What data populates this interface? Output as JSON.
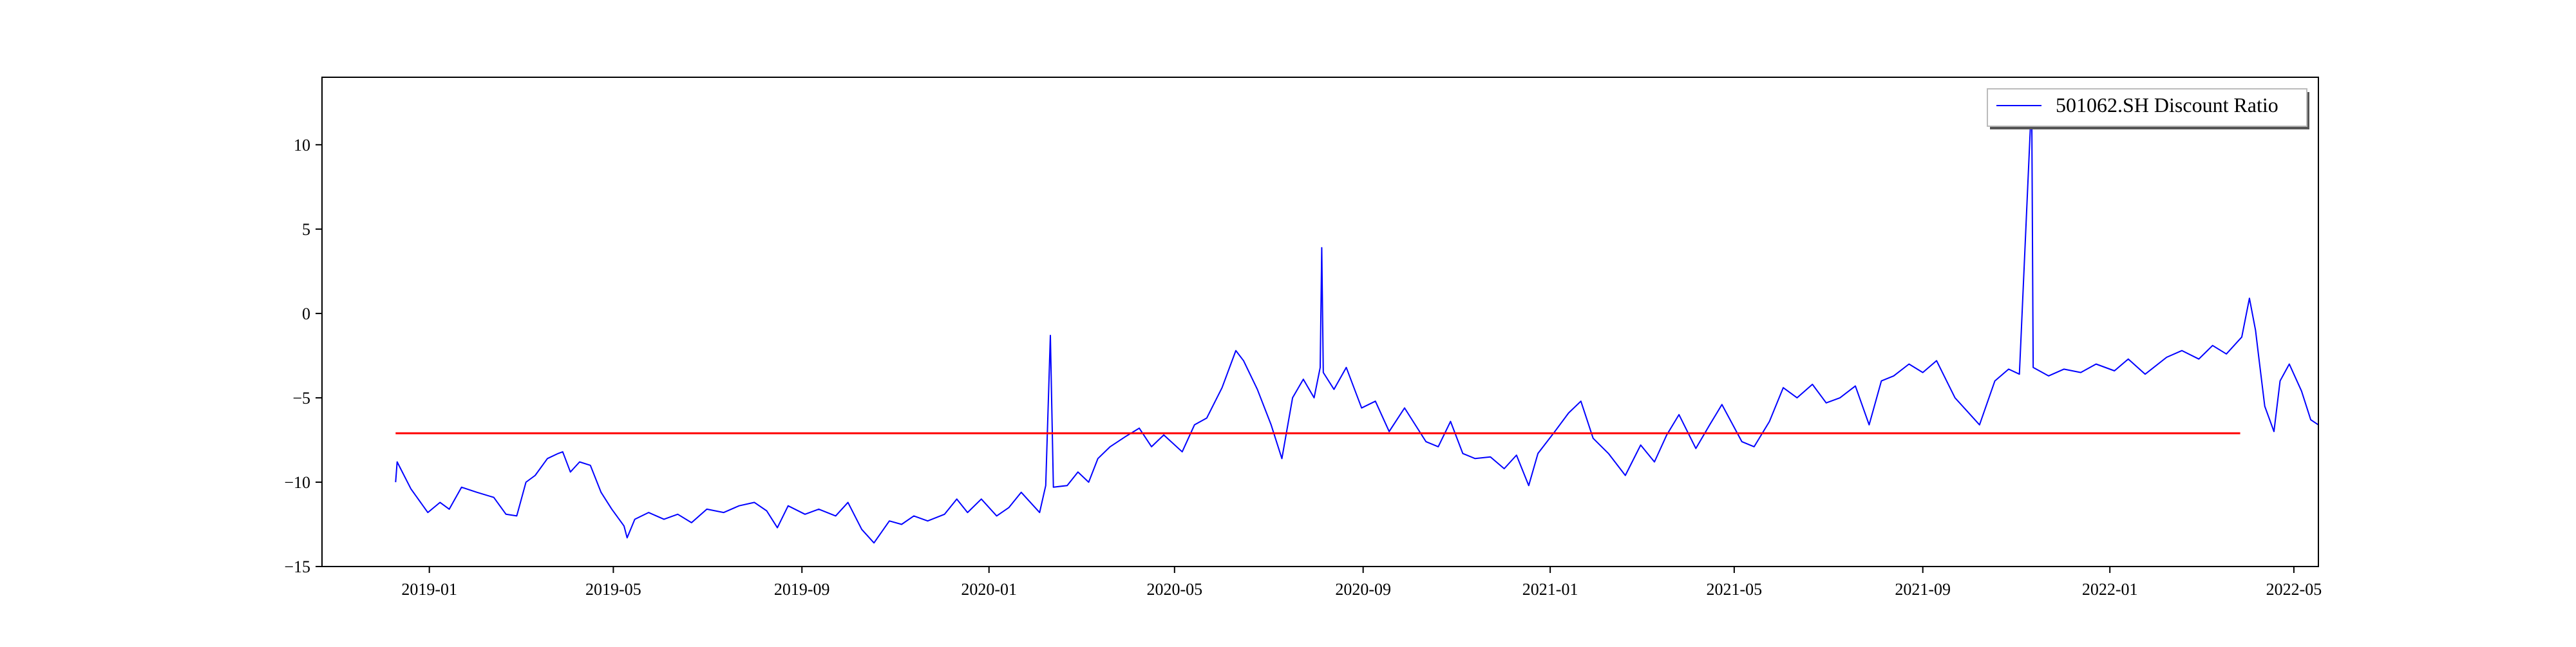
{
  "chart_data": {
    "type": "line",
    "title": "",
    "xlabel": "",
    "ylabel": "",
    "ylim": [
      -15,
      14
    ],
    "xlim": [
      "2018-10-23",
      "2022-05-17"
    ],
    "grid": false,
    "legend_position": "top-right",
    "x_ticks": [
      "2019-01",
      "2019-05",
      "2019-09",
      "2020-01",
      "2020-05",
      "2020-09",
      "2021-01",
      "2021-05",
      "2021-09",
      "2022-01",
      "2022-05"
    ],
    "y_ticks": [
      10,
      5,
      0,
      -5,
      -10,
      -15
    ],
    "y_tick_labels": [
      "10",
      "5",
      "0",
      "−5",
      "−10",
      "−15"
    ],
    "series": [
      {
        "name": "501062.SH Discount Ratio",
        "color": "#0000ff",
        "points": [
          [
            "2018-12-10",
            -10.0
          ],
          [
            "2018-12-11",
            -8.8
          ],
          [
            "2018-12-20",
            -10.4
          ],
          [
            "2018-12-31",
            -11.8
          ],
          [
            "2019-01-08",
            -11.2
          ],
          [
            "2019-01-14",
            -11.6
          ],
          [
            "2019-01-22",
            -10.3
          ],
          [
            "2019-02-01",
            -10.6
          ],
          [
            "2019-02-12",
            -10.9
          ],
          [
            "2019-02-20",
            -11.9
          ],
          [
            "2019-02-27",
            -12.0
          ],
          [
            "2019-03-05",
            -10.0
          ],
          [
            "2019-03-11",
            -9.6
          ],
          [
            "2019-03-19",
            -8.6
          ],
          [
            "2019-03-26",
            -8.3
          ],
          [
            "2019-03-29",
            -8.2
          ],
          [
            "2019-04-03",
            -9.4
          ],
          [
            "2019-04-09",
            -8.8
          ],
          [
            "2019-04-16",
            -9.0
          ],
          [
            "2019-04-23",
            -10.6
          ],
          [
            "2019-04-30",
            -11.6
          ],
          [
            "2019-05-08",
            -12.6
          ],
          [
            "2019-05-10",
            -13.3
          ],
          [
            "2019-05-15",
            -12.2
          ],
          [
            "2019-05-24",
            -11.8
          ],
          [
            "2019-06-03",
            -12.2
          ],
          [
            "2019-06-12",
            -11.9
          ],
          [
            "2019-06-21",
            -12.4
          ],
          [
            "2019-07-01",
            -11.6
          ],
          [
            "2019-07-12",
            -11.8
          ],
          [
            "2019-07-22",
            -11.4
          ],
          [
            "2019-08-01",
            -11.2
          ],
          [
            "2019-08-09",
            -11.7
          ],
          [
            "2019-08-16",
            -12.7
          ],
          [
            "2019-08-23",
            -11.4
          ],
          [
            "2019-09-03",
            -11.9
          ],
          [
            "2019-09-12",
            -11.6
          ],
          [
            "2019-09-23",
            -12.0
          ],
          [
            "2019-10-01",
            -11.2
          ],
          [
            "2019-10-10",
            -12.8
          ],
          [
            "2019-10-18",
            -13.6
          ],
          [
            "2019-10-28",
            -12.3
          ],
          [
            "2019-11-05",
            -12.5
          ],
          [
            "2019-11-13",
            -12.0
          ],
          [
            "2019-11-22",
            -12.3
          ],
          [
            "2019-12-03",
            -11.9
          ],
          [
            "2019-12-11",
            -11.0
          ],
          [
            "2019-12-18",
            -11.8
          ],
          [
            "2019-12-27",
            -11.0
          ],
          [
            "2020-01-06",
            -12.0
          ],
          [
            "2020-01-14",
            -11.5
          ],
          [
            "2020-01-22",
            -10.6
          ],
          [
            "2020-02-03",
            -11.8
          ],
          [
            "2020-02-07",
            -10.2
          ],
          [
            "2020-02-10",
            -1.3
          ],
          [
            "2020-02-12",
            -10.3
          ],
          [
            "2020-02-21",
            -10.2
          ],
          [
            "2020-02-28",
            -9.4
          ],
          [
            "2020-03-06",
            -10.0
          ],
          [
            "2020-03-12",
            -8.6
          ],
          [
            "2020-03-20",
            -7.9
          ],
          [
            "2020-03-30",
            -7.3
          ],
          [
            "2020-04-08",
            -6.8
          ],
          [
            "2020-04-16",
            -7.9
          ],
          [
            "2020-04-24",
            -7.2
          ],
          [
            "2020-05-06",
            -8.2
          ],
          [
            "2020-05-14",
            -6.6
          ],
          [
            "2020-05-22",
            -6.2
          ],
          [
            "2020-06-01",
            -4.4
          ],
          [
            "2020-06-10",
            -2.2
          ],
          [
            "2020-06-15",
            -2.8
          ],
          [
            "2020-06-24",
            -4.5
          ],
          [
            "2020-07-03",
            -6.6
          ],
          [
            "2020-07-10",
            -8.6
          ],
          [
            "2020-07-17",
            -5.0
          ],
          [
            "2020-07-24",
            -3.9
          ],
          [
            "2020-07-31",
            -5.0
          ],
          [
            "2020-08-04",
            -3.2
          ],
          [
            "2020-08-05",
            3.9
          ],
          [
            "2020-08-06",
            -3.5
          ],
          [
            "2020-08-13",
            -4.5
          ],
          [
            "2020-08-21",
            -3.2
          ],
          [
            "2020-08-31",
            -5.6
          ],
          [
            "2020-09-09",
            -5.2
          ],
          [
            "2020-09-18",
            -7.0
          ],
          [
            "2020-09-28",
            -5.6
          ],
          [
            "2020-10-12",
            -7.6
          ],
          [
            "2020-10-20",
            -7.9
          ],
          [
            "2020-10-28",
            -6.4
          ],
          [
            "2020-11-05",
            -8.3
          ],
          [
            "2020-11-13",
            -8.6
          ],
          [
            "2020-11-23",
            -8.5
          ],
          [
            "2020-12-02",
            -9.2
          ],
          [
            "2020-12-10",
            -8.4
          ],
          [
            "2020-12-18",
            -10.2
          ],
          [
            "2020-12-24",
            -8.3
          ],
          [
            "2021-01-04",
            -7.0
          ],
          [
            "2021-01-13",
            -5.9
          ],
          [
            "2021-01-21",
            -5.2
          ],
          [
            "2021-01-29",
            -7.4
          ],
          [
            "2021-02-08",
            -8.3
          ],
          [
            "2021-02-19",
            -9.6
          ],
          [
            "2021-03-01",
            -7.8
          ],
          [
            "2021-03-10",
            -8.8
          ],
          [
            "2021-03-18",
            -7.2
          ],
          [
            "2021-03-26",
            -6.0
          ],
          [
            "2021-04-06",
            -8.0
          ],
          [
            "2021-04-15",
            -6.6
          ],
          [
            "2021-04-23",
            -5.4
          ],
          [
            "2021-05-06",
            -7.6
          ],
          [
            "2021-05-14",
            -7.9
          ],
          [
            "2021-05-24",
            -6.4
          ],
          [
            "2021-06-02",
            -4.4
          ],
          [
            "2021-06-11",
            -5.0
          ],
          [
            "2021-06-21",
            -4.2
          ],
          [
            "2021-06-30",
            -5.3
          ],
          [
            "2021-07-09",
            -5.0
          ],
          [
            "2021-07-19",
            -4.3
          ],
          [
            "2021-07-28",
            -6.6
          ],
          [
            "2021-08-05",
            -4.0
          ],
          [
            "2021-08-13",
            -3.7
          ],
          [
            "2021-08-23",
            -3.0
          ],
          [
            "2021-09-01",
            -3.5
          ],
          [
            "2021-09-10",
            -2.8
          ],
          [
            "2021-09-22",
            -5.0
          ],
          [
            "2021-10-08",
            -6.6
          ],
          [
            "2021-10-18",
            -4.0
          ],
          [
            "2021-10-27",
            -3.3
          ],
          [
            "2021-11-03",
            -3.6
          ],
          [
            "2021-11-11",
            12.8
          ],
          [
            "2021-11-12",
            -3.2
          ],
          [
            "2021-11-22",
            -3.7
          ],
          [
            "2021-12-02",
            -3.3
          ],
          [
            "2021-12-13",
            -3.5
          ],
          [
            "2021-12-23",
            -3.0
          ],
          [
            "2022-01-04",
            -3.4
          ],
          [
            "2022-01-13",
            -2.7
          ],
          [
            "2022-01-24",
            -3.6
          ],
          [
            "2022-02-07",
            -2.6
          ],
          [
            "2022-02-17",
            -2.2
          ],
          [
            "2022-02-28",
            -2.7
          ],
          [
            "2022-03-09",
            -1.9
          ],
          [
            "2022-03-18",
            -2.4
          ],
          [
            "2022-03-28",
            -1.4
          ],
          [
            "2022-04-02",
            0.9
          ],
          [
            "2022-04-06",
            -1.0
          ],
          [
            "2022-04-08",
            -2.5
          ],
          [
            "2022-04-12",
            -5.5
          ],
          [
            "2022-04-18",
            -7.0
          ],
          [
            "2022-04-22",
            -4.0
          ],
          [
            "2022-04-28",
            -3.0
          ],
          [
            "2022-05-06",
            -4.6
          ],
          [
            "2022-05-12",
            -6.3
          ],
          [
            "2022-05-17",
            -6.6
          ]
        ]
      }
    ],
    "reference_line": {
      "y": -7.1,
      "color": "#ff0000",
      "x_start": "2018-12-10",
      "x_end": "2022-03-27"
    }
  }
}
